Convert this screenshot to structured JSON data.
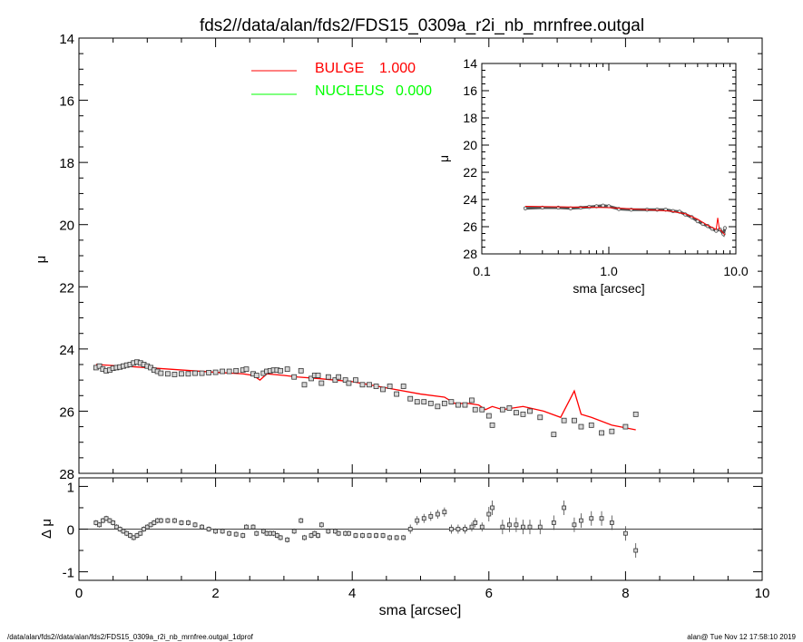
{
  "chart_data": [
    {
      "panel": "main",
      "type": "scatter",
      "title": "fds2//data/alan/fds2/FDS15_0309a_r2i_nb_mrnfree.outgal",
      "xlabel": "",
      "ylabel": "μ",
      "xlim": [
        0,
        10
      ],
      "ylim": [
        28,
        14
      ],
      "yticks": [
        14,
        16,
        18,
        20,
        22,
        24,
        26,
        28
      ],
      "legend_position": "top",
      "legend": [
        {
          "label": "BULGE",
          "value": "1.000",
          "color": "#ff0000"
        },
        {
          "label": "NUCLEUS",
          "value": "0.000",
          "color": "#00ff00"
        }
      ],
      "series": [
        {
          "name": "data",
          "marker": "square",
          "x": [
            0.25,
            0.3,
            0.35,
            0.4,
            0.45,
            0.5,
            0.55,
            0.6,
            0.65,
            0.7,
            0.75,
            0.8,
            0.85,
            0.9,
            0.95,
            1.0,
            1.05,
            1.1,
            1.15,
            1.2,
            1.3,
            1.4,
            1.5,
            1.6,
            1.7,
            1.8,
            1.9,
            2.0,
            2.1,
            2.2,
            2.3,
            2.4,
            2.45,
            2.55,
            2.6,
            2.7,
            2.75,
            2.8,
            2.85,
            2.9,
            2.95,
            3.05,
            3.15,
            3.25,
            3.3,
            3.4,
            3.45,
            3.5,
            3.55,
            3.65,
            3.75,
            3.8,
            3.9,
            3.95,
            4.05,
            4.15,
            4.25,
            4.35,
            4.45,
            4.55,
            4.65,
            4.75,
            4.85,
            4.95,
            5.05,
            5.15,
            5.25,
            5.35,
            5.45,
            5.55,
            5.65,
            5.75,
            5.8,
            5.9,
            6.0,
            6.05,
            6.2,
            6.3,
            6.4,
            6.5,
            6.6,
            6.75,
            6.95,
            7.1,
            7.25,
            7.35,
            7.5,
            7.65,
            7.8,
            8.0,
            8.15
          ],
          "y": [
            24.6,
            24.55,
            24.65,
            24.7,
            24.68,
            24.62,
            24.6,
            24.58,
            24.55,
            24.52,
            24.5,
            24.45,
            24.42,
            24.45,
            24.5,
            24.55,
            24.6,
            24.68,
            24.72,
            24.78,
            24.8,
            24.82,
            24.8,
            24.8,
            24.78,
            24.78,
            24.76,
            24.75,
            24.72,
            24.72,
            24.7,
            24.68,
            24.65,
            24.8,
            24.85,
            24.78,
            24.72,
            24.7,
            24.68,
            24.68,
            24.7,
            24.65,
            24.9,
            24.7,
            25.15,
            24.95,
            24.85,
            24.85,
            25.1,
            24.9,
            25.0,
            24.9,
            25.0,
            25.1,
            25.0,
            25.15,
            25.15,
            25.2,
            25.3,
            25.2,
            25.45,
            25.2,
            25.6,
            25.7,
            25.7,
            25.75,
            25.85,
            25.75,
            25.7,
            25.8,
            25.8,
            25.65,
            25.95,
            25.95,
            26.15,
            26.45,
            25.95,
            25.9,
            26.05,
            26.1,
            26.0,
            26.2,
            26.75,
            26.3,
            26.3,
            26.5,
            26.45,
            26.7,
            26.65,
            26.5,
            26.1
          ]
        },
        {
          "name": "BULGE",
          "style": "line",
          "color": "#ff0000",
          "x": [
            0.25,
            1.0,
            2.0,
            2.4,
            2.55,
            2.65,
            2.75,
            3.0,
            3.2,
            3.5,
            4.0,
            4.5,
            5.0,
            5.35,
            5.5,
            5.7,
            5.85,
            5.95,
            6.05,
            6.2,
            6.5,
            6.8,
            7.05,
            7.25,
            7.35,
            7.5,
            7.8,
            8.15
          ],
          "y": [
            24.5,
            24.6,
            24.75,
            24.8,
            24.85,
            25.0,
            24.8,
            24.85,
            24.9,
            24.95,
            25.05,
            25.25,
            25.45,
            25.55,
            25.75,
            25.75,
            25.8,
            25.95,
            25.85,
            25.95,
            25.85,
            26.0,
            26.2,
            25.35,
            26.1,
            26.2,
            26.45,
            26.6
          ]
        }
      ]
    },
    {
      "panel": "inset",
      "type": "line",
      "xlabel": "sma [arcsec]",
      "ylabel": "μ",
      "xscale": "log",
      "xlim": [
        0.1,
        10.0
      ],
      "ylim": [
        28,
        14
      ],
      "xtick_labels": [
        "0.1",
        "1.0",
        "10.0"
      ],
      "yticks": [
        14,
        16,
        18,
        20,
        22,
        24,
        26,
        28
      ],
      "series": [
        {
          "name": "data",
          "marker": "circle",
          "x": [
            0.22,
            0.3,
            0.4,
            0.5,
            0.6,
            0.7,
            0.8,
            0.9,
            1.0,
            1.2,
            1.5,
            2.0,
            2.4,
            2.8,
            3.2,
            3.6,
            4.0,
            4.5,
            5.0,
            5.5,
            6.0,
            6.5,
            7.0,
            7.5,
            8.0,
            8.2
          ],
          "y": [
            24.65,
            24.6,
            24.6,
            24.65,
            24.6,
            24.55,
            24.5,
            24.45,
            24.5,
            24.7,
            24.75,
            24.75,
            24.75,
            24.75,
            24.85,
            24.9,
            25.1,
            25.3,
            25.6,
            25.8,
            25.95,
            26.15,
            26.3,
            26.2,
            26.55,
            26.1
          ]
        },
        {
          "name": "BULGE",
          "style": "line",
          "color": "#ff0000",
          "x": [
            0.22,
            1.0,
            2.0,
            3.0,
            4.0,
            5.0,
            6.0,
            7.0,
            7.2,
            7.4,
            8.2
          ],
          "y": [
            24.5,
            24.6,
            24.75,
            24.85,
            25.05,
            25.45,
            25.9,
            26.2,
            25.35,
            26.15,
            26.6
          ]
        }
      ]
    },
    {
      "panel": "residual",
      "type": "scatter",
      "xlabel": "sma [arcsec]",
      "ylabel": "Δ μ",
      "xlim": [
        0,
        10
      ],
      "ylim": [
        -1.2,
        1.2
      ],
      "xticks": [
        0,
        2,
        4,
        6,
        8,
        10
      ],
      "yticks": [
        -1,
        0,
        1
      ],
      "series": [
        {
          "name": "residual",
          "marker": "square",
          "x": [
            0.25,
            0.3,
            0.35,
            0.4,
            0.45,
            0.5,
            0.55,
            0.6,
            0.65,
            0.7,
            0.75,
            0.8,
            0.85,
            0.9,
            0.95,
            1.0,
            1.05,
            1.1,
            1.15,
            1.2,
            1.3,
            1.4,
            1.5,
            1.6,
            1.7,
            1.8,
            1.9,
            2.0,
            2.1,
            2.2,
            2.3,
            2.4,
            2.45,
            2.55,
            2.6,
            2.7,
            2.75,
            2.8,
            2.85,
            2.9,
            2.95,
            3.05,
            3.15,
            3.25,
            3.3,
            3.4,
            3.45,
            3.5,
            3.55,
            3.65,
            3.75,
            3.8,
            3.9,
            3.95,
            4.05,
            4.15,
            4.25,
            4.35,
            4.45,
            4.55,
            4.65,
            4.75,
            4.85,
            4.95,
            5.05,
            5.15,
            5.25,
            5.35,
            5.45,
            5.55,
            5.65,
            5.75,
            5.8,
            5.9,
            6.0,
            6.05,
            6.2,
            6.3,
            6.4,
            6.5,
            6.6,
            6.75,
            6.95,
            7.1,
            7.25,
            7.35,
            7.5,
            7.65,
            7.8,
            8.0,
            8.15
          ],
          "y": [
            0.15,
            0.1,
            0.2,
            0.25,
            0.2,
            0.15,
            0.05,
            0.0,
            -0.05,
            -0.1,
            -0.15,
            -0.2,
            -0.15,
            -0.1,
            0.0,
            0.05,
            0.1,
            0.15,
            0.2,
            0.2,
            0.2,
            0.2,
            0.15,
            0.15,
            0.1,
            0.05,
            0.0,
            -0.05,
            -0.05,
            -0.1,
            -0.12,
            -0.15,
            0.05,
            0.05,
            -0.1,
            -0.05,
            -0.1,
            -0.1,
            -0.1,
            -0.15,
            -0.2,
            -0.25,
            -0.05,
            0.2,
            -0.2,
            -0.15,
            -0.1,
            -0.15,
            0.1,
            -0.05,
            -0.05,
            -0.1,
            -0.1,
            -0.1,
            -0.15,
            -0.15,
            -0.15,
            -0.15,
            -0.15,
            -0.2,
            -0.2,
            -0.2,
            0.0,
            0.2,
            0.25,
            0.3,
            0.35,
            0.4,
            0.0,
            0.0,
            0.0,
            0.05,
            0.15,
            0.05,
            0.35,
            0.5,
            0.05,
            0.1,
            0.1,
            0.05,
            0.05,
            0.05,
            0.15,
            0.5,
            0.1,
            0.2,
            0.25,
            0.25,
            0.15,
            -0.1,
            -0.5
          ]
        }
      ]
    }
  ],
  "footer": {
    "left": "/data/alan/fds2//data/alan/fds2/FDS15_0309a_r2i_nb_mrnfree.outgal_1dprof",
    "right": "alan@  Tue Nov 12 17:58:10 2019"
  }
}
